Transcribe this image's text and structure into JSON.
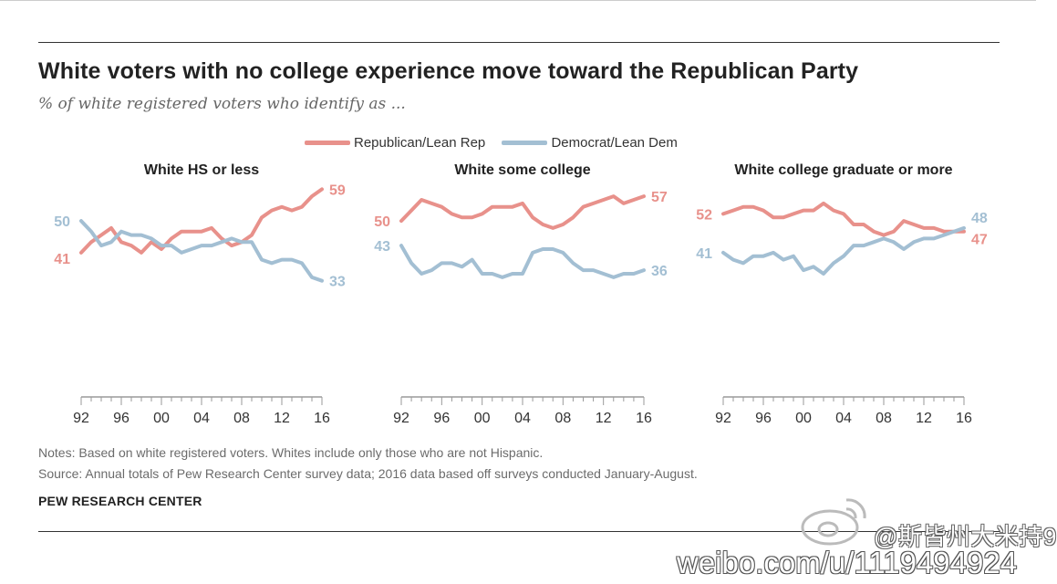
{
  "header": {
    "title": "White voters with no college experience move toward the Republican Party",
    "subtitle": "% of white registered voters who identify as ..."
  },
  "legend": [
    {
      "label": "Republican/Lean Rep",
      "color": "#e8918b"
    },
    {
      "label": "Democrat/Lean Dem",
      "color": "#a3bfd3"
    }
  ],
  "chart_data": [
    {
      "type": "line",
      "title": "White HS or less",
      "x": [
        1992,
        1993,
        1994,
        1995,
        1996,
        1997,
        1998,
        1999,
        2000,
        2001,
        2002,
        2003,
        2004,
        2005,
        2006,
        2007,
        2008,
        2009,
        2010,
        2011,
        2012,
        2013,
        2014,
        2015,
        2016
      ],
      "x_tick_labels": [
        "92",
        "96",
        "00",
        "04",
        "08",
        "12",
        "16"
      ],
      "ylim": [
        0,
        70
      ],
      "series": [
        {
          "name": "Republican/Lean Rep",
          "color": "#e8918b",
          "values": [
            41,
            44,
            46,
            48,
            44,
            43,
            41,
            44,
            42,
            45,
            47,
            47,
            47,
            48,
            45,
            43,
            44,
            46,
            51,
            53,
            54,
            53,
            54,
            57,
            59
          ],
          "start_label": "41",
          "end_label": "59"
        },
        {
          "name": "Democrat/Lean Dem",
          "color": "#a3bfd3",
          "values": [
            50,
            47,
            43,
            44,
            47,
            46,
            46,
            45,
            43,
            43,
            41,
            42,
            43,
            43,
            44,
            45,
            44,
            44,
            39,
            38,
            39,
            39,
            38,
            34,
            33
          ],
          "start_label": "50",
          "end_label": "33"
        }
      ]
    },
    {
      "type": "line",
      "title": "White some college",
      "x": [
        1992,
        1993,
        1994,
        1995,
        1996,
        1997,
        1998,
        1999,
        2000,
        2001,
        2002,
        2003,
        2004,
        2005,
        2006,
        2007,
        2008,
        2009,
        2010,
        2011,
        2012,
        2013,
        2014,
        2015,
        2016
      ],
      "x_tick_labels": [
        "92",
        "96",
        "00",
        "04",
        "08",
        "12",
        "16"
      ],
      "ylim": [
        0,
        70
      ],
      "series": [
        {
          "name": "Republican/Lean Rep",
          "color": "#e8918b",
          "values": [
            50,
            53,
            56,
            55,
            54,
            52,
            51,
            51,
            52,
            54,
            54,
            54,
            55,
            51,
            49,
            48,
            49,
            51,
            54,
            55,
            56,
            57,
            55,
            56,
            57
          ],
          "start_label": "50",
          "end_label": "57"
        },
        {
          "name": "Democrat/Lean Dem",
          "color": "#a3bfd3",
          "values": [
            43,
            38,
            35,
            36,
            38,
            38,
            37,
            39,
            35,
            35,
            34,
            35,
            35,
            41,
            42,
            42,
            41,
            38,
            36,
            36,
            35,
            34,
            35,
            35,
            36
          ],
          "start_label": "43",
          "end_label": "36"
        }
      ]
    },
    {
      "type": "line",
      "title": "White college graduate or more",
      "x": [
        1992,
        1993,
        1994,
        1995,
        1996,
        1997,
        1998,
        1999,
        2000,
        2001,
        2002,
        2003,
        2004,
        2005,
        2006,
        2007,
        2008,
        2009,
        2010,
        2011,
        2012,
        2013,
        2014,
        2015,
        2016
      ],
      "x_tick_labels": [
        "92",
        "96",
        "00",
        "04",
        "08",
        "12",
        "16"
      ],
      "ylim": [
        0,
        70
      ],
      "series": [
        {
          "name": "Republican/Lean Rep",
          "color": "#e8918b",
          "values": [
            52,
            53,
            54,
            54,
            53,
            51,
            51,
            52,
            53,
            53,
            55,
            53,
            52,
            49,
            49,
            47,
            46,
            47,
            50,
            49,
            48,
            48,
            47,
            47,
            47
          ],
          "start_label": "52",
          "end_label": "47"
        },
        {
          "name": "Democrat/Lean Dem",
          "color": "#a3bfd3",
          "values": [
            41,
            39,
            38,
            40,
            40,
            41,
            39,
            40,
            36,
            37,
            35,
            38,
            40,
            43,
            43,
            44,
            45,
            44,
            42,
            44,
            45,
            45,
            46,
            47,
            48
          ],
          "start_label": "41",
          "end_label": "48"
        }
      ]
    }
  ],
  "footer": {
    "notes": "Notes: Based on white registered voters. Whites include only those who are not Hispanic.",
    "source": "Source: Annual totals of Pew Research Center survey data; 2016 data based off surveys conducted January-August.",
    "org": "PEW RESEARCH CENTER"
  },
  "watermark": {
    "user": "@斯皆州大米持9",
    "url": "weibo.com/u/1119494924"
  }
}
